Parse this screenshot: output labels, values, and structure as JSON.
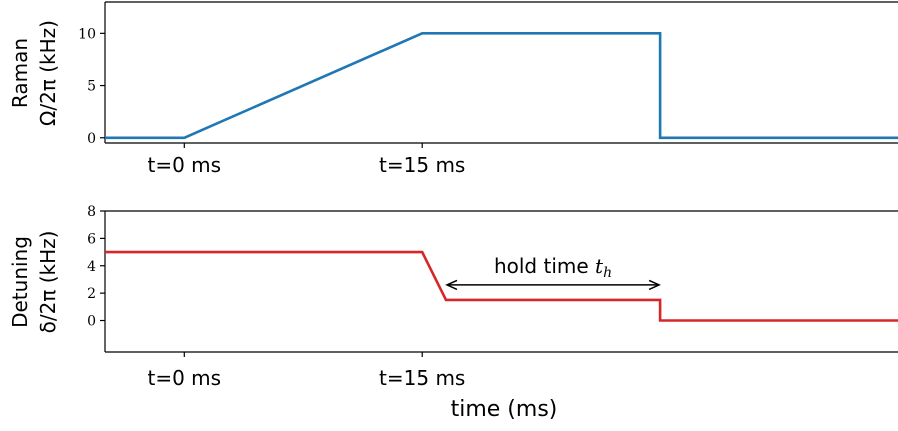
{
  "chart_data": [
    {
      "type": "line",
      "ylabel_line1": "Raman",
      "ylabel_line2": "Ω/2π (kHz)",
      "ylim": [
        -0.5,
        13
      ],
      "yticks": [
        {
          "value": 0,
          "label": "0"
        },
        {
          "value": 5,
          "label": "5"
        },
        {
          "value": 10,
          "label": "10"
        }
      ],
      "x_markers": [
        {
          "x": 0,
          "label": "t=0 ms"
        },
        {
          "x": 15,
          "label": "t=15 ms"
        }
      ],
      "series": [
        {
          "color": "#1f77b4",
          "x": [
            -5,
            0,
            15,
            30,
            30,
            45
          ],
          "y": [
            0,
            0,
            10,
            10,
            0,
            0
          ]
        }
      ],
      "xlim": [
        -5,
        45
      ]
    },
    {
      "type": "line",
      "ylabel_line1": "Detuning",
      "ylabel_line2": "δ/2π (kHz)",
      "xlabel": "time (ms)",
      "ylim": [
        -2.3,
        8
      ],
      "yticks": [
        {
          "value": 0,
          "label": "0"
        },
        {
          "value": 2,
          "label": "2"
        },
        {
          "value": 4,
          "label": "4"
        },
        {
          "value": 6,
          "label": "6"
        },
        {
          "value": 8,
          "label": "8"
        }
      ],
      "x_markers": [
        {
          "x": 0,
          "label": "t=0 ms"
        },
        {
          "x": 15,
          "label": "t=15 ms"
        }
      ],
      "series": [
        {
          "color": "#d62728",
          "x": [
            -5,
            15,
            16.5,
            30,
            30,
            45
          ],
          "y": [
            5,
            5,
            1.5,
            1.5,
            0,
            0
          ]
        }
      ],
      "annotation": {
        "text": "hold time ",
        "symbol": "t",
        "subscript": "h",
        "x_start": 16.5,
        "x_end": 30,
        "y": 2.6
      },
      "xlim": [
        -5,
        45
      ]
    }
  ]
}
